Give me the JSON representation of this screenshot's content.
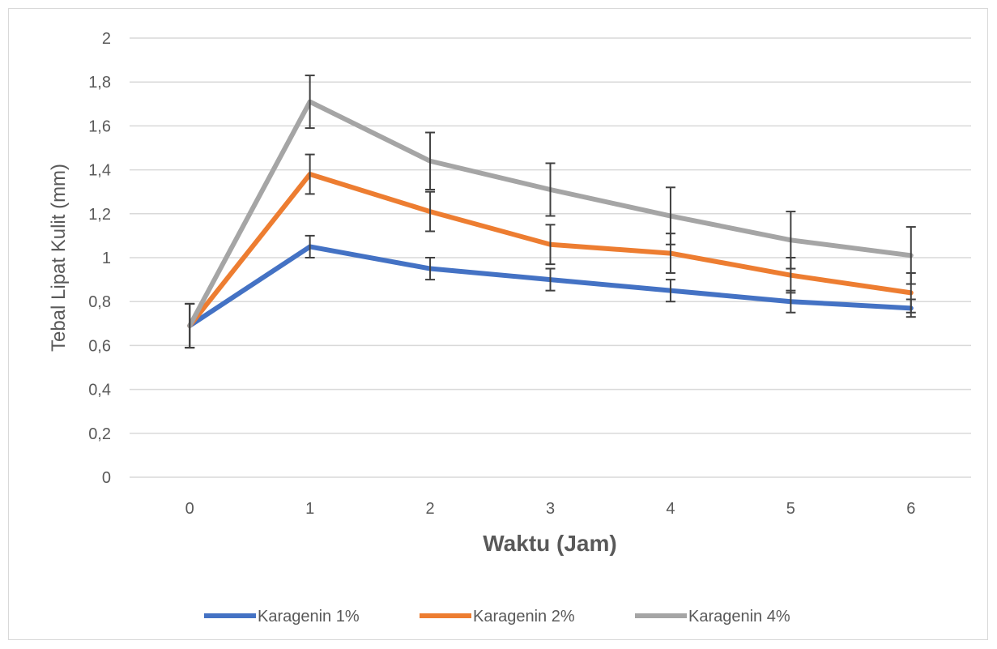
{
  "chart_data": {
    "type": "line",
    "title": "",
    "xlabel": "Waktu (Jam)",
    "ylabel": "Tebal Lipat Kulit (mm)",
    "categories": [
      "0",
      "1",
      "2",
      "3",
      "4",
      "5",
      "6"
    ],
    "ylim": [
      0,
      2
    ],
    "yticks": [
      "0",
      "0,2",
      "0,4",
      "0,6",
      "0,8",
      "1",
      "1,2",
      "1,4",
      "1,6",
      "1,8",
      "2"
    ],
    "grid": true,
    "legend_position": "bottom",
    "series": [
      {
        "name": "Karagenin 1%",
        "color": "#4472C4",
        "values": [
          0.69,
          1.05,
          0.95,
          0.9,
          0.85,
          0.8,
          0.77
        ],
        "error": [
          0.1,
          0.05,
          0.05,
          0.05,
          0.05,
          0.05,
          0.04
        ]
      },
      {
        "name": "Karagenin 2%",
        "color": "#ED7D31",
        "values": [
          0.69,
          1.38,
          1.21,
          1.06,
          1.02,
          0.92,
          0.84
        ],
        "error": [
          0.1,
          0.09,
          0.09,
          0.09,
          0.09,
          0.08,
          0.09
        ]
      },
      {
        "name": "Karagenin 4%",
        "color": "#A5A5A5",
        "values": [
          0.69,
          1.71,
          1.44,
          1.31,
          1.19,
          1.08,
          1.01
        ],
        "error": [
          0.1,
          0.12,
          0.13,
          0.12,
          0.13,
          0.13,
          0.13
        ]
      }
    ]
  }
}
